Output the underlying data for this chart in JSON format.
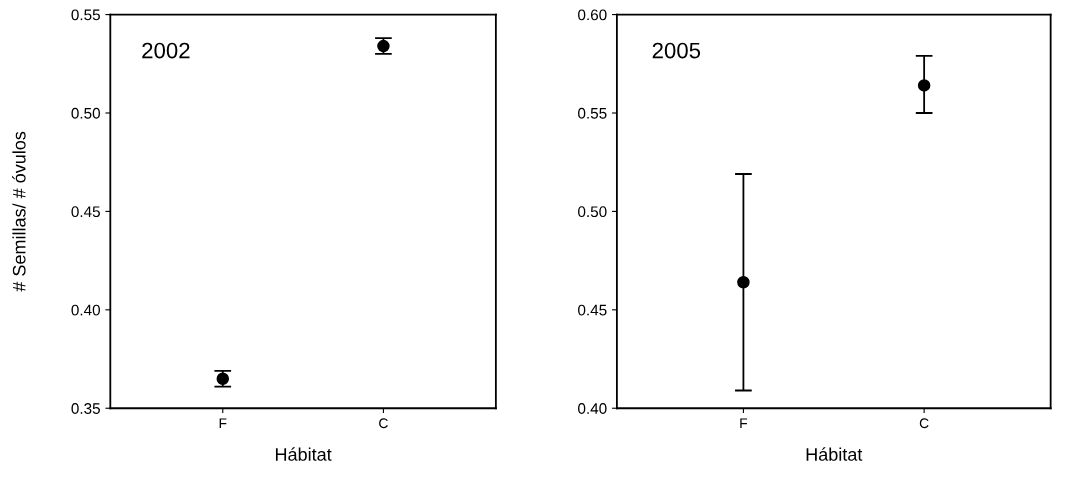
{
  "chart_data": [
    {
      "type": "scatter",
      "xlabel": "Hábitat",
      "ylabel": "# Semillas/ # óvulos",
      "annotations": [
        "2002"
      ],
      "categories": [
        "F",
        "C"
      ],
      "series": [
        {
          "color": "#000000",
          "values": [
            0.365,
            0.534
          ],
          "errors": [
            [
              0.361,
              0.369
            ],
            [
              0.53,
              0.538
            ]
          ]
        }
      ],
      "ylim": [
        0.35,
        0.55
      ],
      "yticks": [
        {
          "value": 0.35,
          "label": "0.35"
        },
        {
          "value": 0.4,
          "label": "0.40"
        },
        {
          "value": 0.45,
          "label": "0.45"
        },
        {
          "value": 0.5,
          "label": "0.50"
        },
        {
          "value": 0.55,
          "label": "0.55"
        }
      ],
      "marker": "circle",
      "grid": false
    },
    {
      "type": "scatter",
      "xlabel": "Hábitat",
      "annotations": [
        "2005"
      ],
      "categories": [
        "F",
        "C"
      ],
      "series": [
        {
          "color": "#000000",
          "values": [
            0.464,
            0.564
          ],
          "errors": [
            [
              0.409,
              0.519
            ],
            [
              0.55,
              0.579
            ]
          ]
        }
      ],
      "ylim": [
        0.4,
        0.6
      ],
      "yticks": [
        {
          "value": 0.4,
          "label": "0.40"
        },
        {
          "value": 0.45,
          "label": "0.45"
        },
        {
          "value": 0.5,
          "label": "0.50"
        },
        {
          "value": 0.55,
          "label": "0.55"
        },
        {
          "value": 0.6,
          "label": "0.60"
        }
      ],
      "marker": "circle",
      "grid": false
    }
  ]
}
